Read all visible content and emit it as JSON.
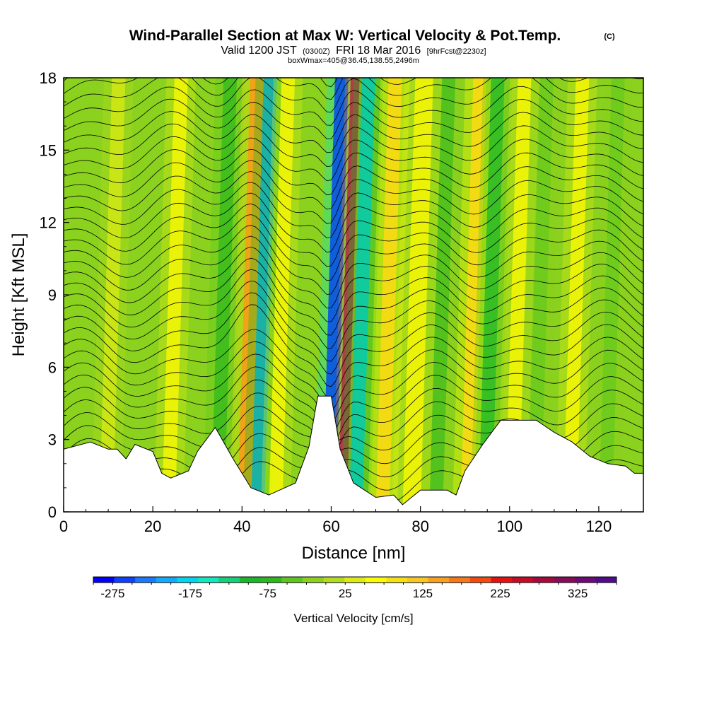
{
  "header": {
    "title": "Wind-Parallel Section at Max W: Vertical Velocity & Pot.Temp.",
    "copyright": "(C)",
    "valid_prefix": "Valid 1200 JST",
    "valid_utc": "(0300Z)",
    "valid_date": "FRI 18 Mar 2016",
    "forecast": "[9hrFcst@2230z]",
    "boxwmax": "boxWmax=405@36.45,138.55,2496m"
  },
  "chart_data": {
    "type": "heatmap",
    "xlabel": "Distance [nm]",
    "ylabel": "Height [Kft MSL]",
    "xlim": [
      0,
      130
    ],
    "ylim": [
      0,
      18
    ],
    "x_ticks": [
      "0",
      "20",
      "40",
      "60",
      "80",
      "100",
      "120"
    ],
    "y_ticks": [
      "0",
      "3",
      "6",
      "9",
      "12",
      "15",
      "18"
    ],
    "colorbar": {
      "label": "Vertical Velocity [cm/s]",
      "tick_labels": [
        "-275",
        "-175",
        "-75",
        "25",
        "125",
        "225",
        "325"
      ],
      "range": [
        -300,
        375
      ],
      "colors": [
        "#0000ff",
        "#1040ff",
        "#1a7aff",
        "#10aaff",
        "#00d6f0",
        "#10e8c0",
        "#14d078",
        "#18b828",
        "#2eb81e",
        "#5cc81e",
        "#8ad21e",
        "#b4dc1e",
        "#dcec10",
        "#fcfc00",
        "#f4e210",
        "#f8c820",
        "#f8a020",
        "#f87818",
        "#f44a10",
        "#e81010",
        "#c80a28",
        "#a8083c",
        "#8a0a5a",
        "#6e0a78",
        "#500a90"
      ]
    },
    "terrain_kft": [
      [
        0,
        2.6
      ],
      [
        6,
        2.9
      ],
      [
        10,
        2.6
      ],
      [
        12,
        2.6
      ],
      [
        14,
        2.2
      ],
      [
        16,
        2.8
      ],
      [
        20,
        2.5
      ],
      [
        22,
        1.6
      ],
      [
        24,
        1.4
      ],
      [
        28,
        1.7
      ],
      [
        30,
        2.5
      ],
      [
        34,
        3.5
      ],
      [
        38,
        2.2
      ],
      [
        42,
        1.0
      ],
      [
        46,
        0.7
      ],
      [
        52,
        1.2
      ],
      [
        55,
        2.7
      ],
      [
        57,
        4.8
      ],
      [
        60,
        4.8
      ],
      [
        62,
        2.6
      ],
      [
        65,
        1.2
      ],
      [
        70,
        0.6
      ],
      [
        74,
        0.7
      ],
      [
        76,
        0.3
      ],
      [
        78,
        0.6
      ],
      [
        80,
        0.9
      ],
      [
        86,
        0.9
      ],
      [
        88,
        0.7
      ],
      [
        90,
        1.7
      ],
      [
        94,
        2.8
      ],
      [
        98,
        3.8
      ],
      [
        106,
        3.8
      ],
      [
        110,
        3.3
      ],
      [
        114,
        2.9
      ],
      [
        118,
        2.3
      ],
      [
        122,
        2.0
      ],
      [
        126,
        1.9
      ],
      [
        128,
        1.6
      ],
      [
        130,
        1.6
      ]
    ],
    "vertical_velocity_bands": [
      {
        "x": 8,
        "w": 3,
        "value": 40
      },
      {
        "x": 22,
        "w": 3,
        "value": 60
      },
      {
        "x": 33,
        "w": 3,
        "value": -75
      },
      {
        "x": 39,
        "w": 3,
        "value": 175
      },
      {
        "x": 42,
        "w": 3,
        "value": -200
      },
      {
        "x": 46,
        "w": 3,
        "value": 60
      },
      {
        "x": 58,
        "w": 3,
        "value": -300
      },
      {
        "x": 61.5,
        "w": 2,
        "value": 320
      },
      {
        "x": 64,
        "w": 3,
        "value": -175
      },
      {
        "x": 70,
        "w": 3,
        "value": 110
      },
      {
        "x": 76,
        "w": 4,
        "value": 60
      },
      {
        "x": 82,
        "w": 3,
        "value": -60
      },
      {
        "x": 89,
        "w": 3,
        "value": 130
      },
      {
        "x": 93,
        "w": 3,
        "value": -100
      },
      {
        "x": 99,
        "w": 3,
        "value": 60
      },
      {
        "x": 104,
        "w": 3,
        "value": -50
      },
      {
        "x": 112,
        "w": 3,
        "value": 60
      },
      {
        "x": 120,
        "w": 3,
        "value": -40
      }
    ]
  }
}
